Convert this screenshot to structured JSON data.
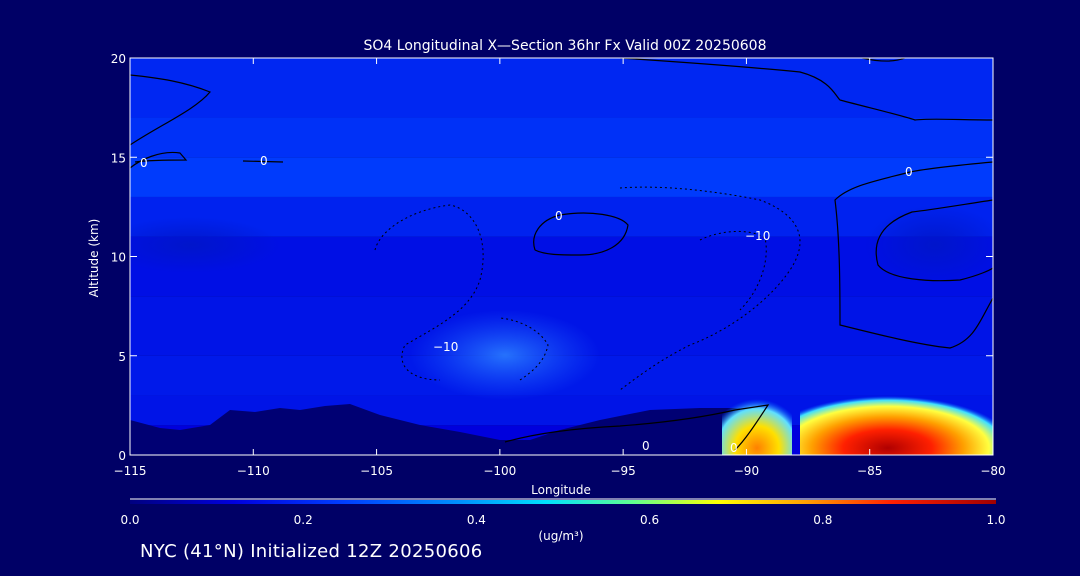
{
  "chart_data": {
    "type": "heatmap",
    "title": "SO4 Longitudinal X—Section 36hr  Fx Valid 00Z 20250608",
    "xlabel": "Longitude",
    "ylabel": "Altitude (km)",
    "xlim": [
      -115,
      -80
    ],
    "ylim": [
      0,
      20
    ],
    "x_ticks": [
      -115,
      -110,
      -105,
      -100,
      -95,
      -90,
      -85,
      -80
    ],
    "x_tick_labels": [
      "−115",
      "−110",
      "−105",
      "−100",
      "−95",
      "−90",
      "−85",
      "−80"
    ],
    "y_ticks": [
      0,
      5,
      10,
      15,
      20
    ],
    "y_tick_labels": [
      "0",
      "5",
      "10",
      "15",
      "20"
    ],
    "colorbar": {
      "label": "(ug/m³)",
      "range": [
        0.0,
        1.0
      ],
      "ticks": [
        0.0,
        0.2,
        0.4,
        0.6,
        0.8,
        1.0
      ],
      "tick_labels": [
        "0.0",
        "0.2",
        "0.4",
        "0.6",
        "0.8",
        "1.0"
      ]
    },
    "contour_labels": [
      "0",
      "0",
      "0",
      "0",
      "−10",
      "−10",
      "0",
      "0"
    ],
    "layers": [
      {
        "ymin": 0,
        "ymax": 1.5,
        "value": 0.12
      },
      {
        "ymin": 1.5,
        "ymax": 3,
        "value": 0.16
      },
      {
        "ymin": 3,
        "ymax": 5,
        "value": 0.17
      },
      {
        "ymin": 5,
        "ymax": 8,
        "value": 0.16
      },
      {
        "ymin": 8,
        "ymax": 11,
        "value": 0.15
      },
      {
        "ymin": 11,
        "ymax": 13,
        "value": 0.19
      },
      {
        "ymin": 13,
        "ymax": 15,
        "value": 0.24
      },
      {
        "ymin": 15,
        "ymax": 17,
        "value": 0.22
      },
      {
        "ymin": 17,
        "ymax": 20,
        "value": 0.2
      }
    ],
    "hotspots": [
      {
        "name": "plume-west",
        "xmin": -90.8,
        "xmax": -89.0,
        "ymin": 0,
        "ymax": 2.4,
        "peak": 0.75
      },
      {
        "name": "plume-east",
        "xmin": -86.8,
        "xmax": -80.2,
        "ymin": 0,
        "ymax": 2.1,
        "peak": 0.95
      }
    ]
  },
  "footer": "NYC (41°N) Initialized 12Z 20250606"
}
